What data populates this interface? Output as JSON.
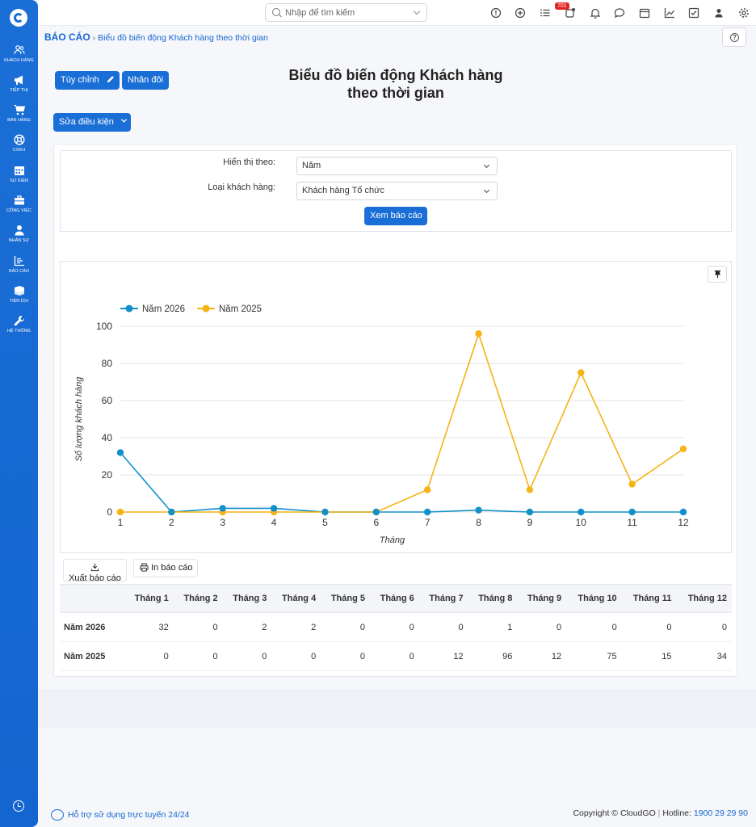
{
  "sidebar": {
    "items": [
      {
        "label": "KHÁCH HÀNG",
        "icon": "users-icon"
      },
      {
        "label": "TIẾP THỊ",
        "icon": "megaphone-icon"
      },
      {
        "label": "BÁN HÀNG",
        "icon": "cart-icon"
      },
      {
        "label": "CSKH",
        "icon": "lifebuoy-icon"
      },
      {
        "label": "SỰ KIỆN",
        "icon": "calendar-icon"
      },
      {
        "label": "CÔNG VIỆC",
        "icon": "briefcase-icon"
      },
      {
        "label": "NHÂN SỰ",
        "icon": "person-icon"
      },
      {
        "label": "BÁO CÁO",
        "icon": "report-icon"
      },
      {
        "label": "TIỆN ÍCH",
        "icon": "box-icon"
      },
      {
        "label": "HỆ THỐNG",
        "icon": "wrench-icon"
      }
    ]
  },
  "topbar": {
    "search_placeholder": "Nhập để tìm kiếm",
    "notification_count": "701"
  },
  "breadcrumb": {
    "root": "BÁO CÁO",
    "current": "Biểu đồ biến động Khách hàng theo thời gian"
  },
  "actions": {
    "customize": "Tùy chỉnh",
    "duplicate": "Nhân đôi",
    "edit_conditions": "Sửa điều kiện"
  },
  "page_title_line1": "Biểu đồ biến động Khách hàng",
  "page_title_line2": "theo thời gian",
  "filters": {
    "display_by_label": "Hiển thị theo:",
    "display_by_value": "Năm",
    "customer_type_label": "Loại khách hàng:",
    "customer_type_value": "Khách hàng Tổ chức",
    "submit": "Xem báo cáo"
  },
  "chart_data": {
    "type": "line",
    "categories": [
      "1",
      "2",
      "3",
      "4",
      "5",
      "6",
      "7",
      "8",
      "9",
      "10",
      "11",
      "12"
    ],
    "series": [
      {
        "name": "Năm 2026",
        "color": "#1490c9",
        "values": [
          32,
          0,
          2,
          2,
          0,
          0,
          0,
          1,
          0,
          0,
          0,
          0
        ]
      },
      {
        "name": "Năm 2025",
        "color": "#f5b316",
        "values": [
          0,
          0,
          0,
          0,
          0,
          0,
          12,
          96,
          12,
          75,
          15,
          34
        ]
      }
    ],
    "xlabel": "Tháng",
    "ylabel": "Số lượng khách hàng",
    "ylim": [
      0,
      100
    ],
    "yticks": [
      0,
      20,
      40,
      60,
      80,
      100
    ],
    "grid": true,
    "legend": "top-left"
  },
  "report_actions": {
    "export": "Xuất báo cáo",
    "print": "In báo cáo"
  },
  "table": {
    "columns": [
      "",
      "Tháng 1",
      "Tháng 2",
      "Tháng 3",
      "Tháng 4",
      "Tháng 5",
      "Tháng 6",
      "Tháng 7",
      "Tháng 8",
      "Tháng 9",
      "Tháng 10",
      "Tháng 11",
      "Tháng 12"
    ],
    "rows": [
      {
        "label": "Năm 2026",
        "values": [
          "32",
          "0",
          "2",
          "2",
          "0",
          "0",
          "0",
          "1",
          "0",
          "0",
          "0",
          "0"
        ]
      },
      {
        "label": "Năm 2025",
        "values": [
          "0",
          "0",
          "0",
          "0",
          "0",
          "0",
          "12",
          "96",
          "12",
          "75",
          "15",
          "34"
        ]
      }
    ]
  },
  "footer": {
    "support": "Hỗ trợ sử dụng trực tuyến 24/24",
    "copyright": "Copyright © CloudGO",
    "hotline_label": "Hotline:",
    "hotline": "1900 29 29 90"
  }
}
